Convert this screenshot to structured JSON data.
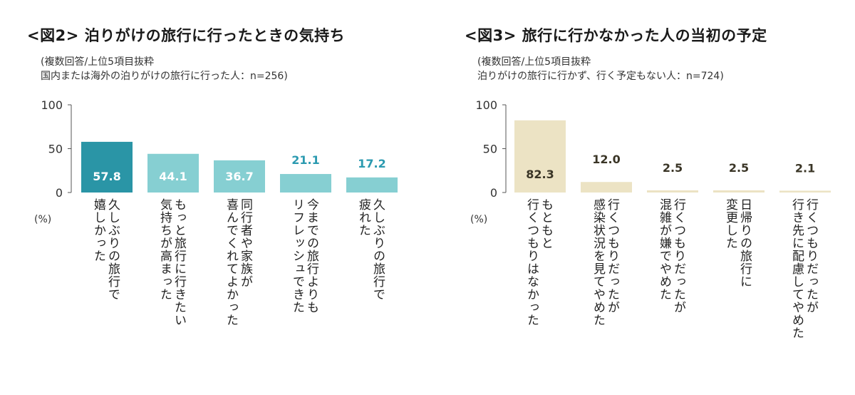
{
  "chart_data": [
    {
      "type": "bar",
      "title": "<図2> 泊りがけの旅行に行ったときの気持ち",
      "notes": [
        "(複数回答/上位5項目抜粋",
        "国内または海外の泊りがけの旅行に行った人：n=256)"
      ],
      "unit_label": "(%)",
      "ylim": [
        0,
        100
      ],
      "yticks": [
        "100",
        "50",
        "0"
      ],
      "categories": [
        "久しぶりの旅行で\n嬉しかった",
        "もっと旅行に行きたい\n気持ちが高まった",
        "同行者や家族が\n喜んでくれてよかった",
        "今までの旅行よりも\nリフレッシュできた",
        "久しぶりの旅行で\n疲れた"
      ],
      "values": [
        57.8,
        44.1,
        36.7,
        21.1,
        17.2
      ],
      "value_labels": [
        "57.8",
        "44.1",
        "36.7",
        "21.1",
        "17.2"
      ],
      "colors": {
        "highlight": "#2a95a6",
        "bar": "#86cfd2",
        "label_inside": "#ffffff",
        "label_outside": "#2b9ab0"
      }
    },
    {
      "type": "bar",
      "title": "<図3> 旅行に行かなかった人の当初の予定",
      "notes": [
        "(複数回答/上位5項目抜粋",
        "泊りがけの旅行に行かず、行く予定もない人：n=724)"
      ],
      "unit_label": "(%)",
      "ylim": [
        0,
        100
      ],
      "yticks": [
        "100",
        "50",
        "0"
      ],
      "categories": [
        "もともと\n行くつもりはなかった",
        "行くつもりだったが\n感染状況を見てやめた",
        "行くつもりだったが\n混雑が嫌でやめた",
        "日帰りの旅行に\n変更した",
        "行くつもりだったが\n行き先に配慮してやめた"
      ],
      "values": [
        82.3,
        12.0,
        2.5,
        2.5,
        2.1
      ],
      "value_labels": [
        "82.3",
        "12.0",
        "2.5",
        "2.5",
        "2.1"
      ],
      "colors": {
        "bar": "#ece3c4",
        "label": "#3a3526"
      }
    }
  ]
}
